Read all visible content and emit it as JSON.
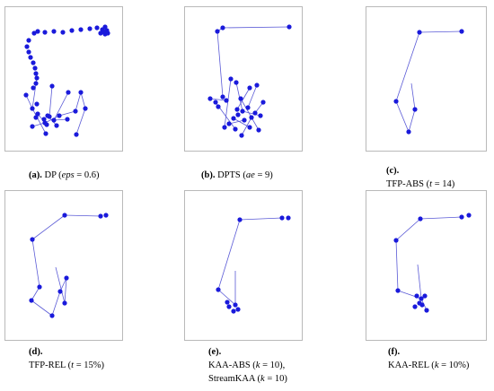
{
  "style": {
    "point_color": "#1a1adb",
    "line_color": "#5a5ad6",
    "border_color": "#b9b9b9"
  },
  "panels": [
    {
      "id": "a",
      "label": "(a).",
      "caption_lines": [
        {
          "pre": "DP (",
          "param": "eps",
          "post": " = 0.6)"
        }
      ],
      "points": [
        [
          38,
          37
        ],
        [
          42,
          35
        ],
        [
          50,
          36
        ],
        [
          60,
          35
        ],
        [
          70,
          36
        ],
        [
          80,
          34
        ],
        [
          90,
          33
        ],
        [
          100,
          32
        ],
        [
          108,
          31
        ],
        [
          114,
          33
        ],
        [
          117,
          30
        ],
        [
          119,
          34
        ],
        [
          116,
          36
        ],
        [
          120,
          37
        ],
        [
          117,
          38
        ],
        [
          112,
          37
        ],
        [
          32,
          45
        ],
        [
          30,
          52
        ],
        [
          32,
          58
        ],
        [
          34,
          64
        ],
        [
          37,
          70
        ],
        [
          39,
          76
        ],
        [
          40,
          82
        ],
        [
          41,
          87
        ],
        [
          40,
          93
        ],
        [
          37,
          98
        ],
        [
          29,
          106
        ],
        [
          41,
          116
        ],
        [
          36,
          121
        ],
        [
          42,
          127
        ],
        [
          40,
          131
        ],
        [
          49,
          133
        ],
        [
          36,
          141
        ],
        [
          51,
          149
        ],
        [
          50,
          137
        ],
        [
          53,
          129
        ],
        [
          52,
          139
        ],
        [
          60,
          134
        ],
        [
          66,
          129
        ],
        [
          63,
          140
        ],
        [
          75,
          133
        ],
        [
          84,
          124
        ],
        [
          76,
          103
        ],
        [
          90,
          103
        ],
        [
          95,
          121
        ],
        [
          85,
          150
        ],
        [
          58,
          96
        ],
        [
          55,
          130
        ]
      ],
      "segments": [
        [
          29,
          106,
          36,
          121
        ],
        [
          36,
          121,
          51,
          149
        ],
        [
          36,
          141,
          50,
          137
        ],
        [
          50,
          137,
          66,
          129
        ],
        [
          66,
          129,
          84,
          124
        ],
        [
          84,
          124,
          90,
          103
        ],
        [
          90,
          103,
          95,
          121
        ],
        [
          95,
          121,
          85,
          150
        ],
        [
          41,
          87,
          36,
          121
        ],
        [
          58,
          96,
          55,
          130
        ],
        [
          53,
          129,
          63,
          140
        ],
        [
          60,
          134,
          75,
          133
        ],
        [
          76,
          103,
          60,
          134
        ],
        [
          42,
          127,
          52,
          139
        ]
      ]
    },
    {
      "id": "b",
      "label": "(b).",
      "caption_lines": [
        {
          "pre": "DPTS (",
          "param": "ae",
          "post": " = 9)"
        }
      ],
      "points": [
        [
          242,
          35
        ],
        [
          248,
          31
        ],
        [
          322,
          30
        ],
        [
          234,
          110
        ],
        [
          240,
          114
        ],
        [
          243,
          119
        ],
        [
          248,
          108
        ],
        [
          252,
          112
        ],
        [
          257,
          88
        ],
        [
          263,
          92
        ],
        [
          270,
          124
        ],
        [
          265,
          128
        ],
        [
          260,
          132
        ],
        [
          255,
          138
        ],
        [
          250,
          142
        ],
        [
          262,
          144
        ],
        [
          269,
          151
        ],
        [
          272,
          134
        ],
        [
          276,
          120
        ],
        [
          280,
          131
        ],
        [
          284,
          126
        ],
        [
          290,
          129
        ],
        [
          293,
          114
        ],
        [
          288,
          145
        ],
        [
          278,
          142
        ],
        [
          268,
          110
        ],
        [
          278,
          98
        ],
        [
          286,
          95
        ],
        [
          264,
          122
        ]
      ],
      "segments": [
        [
          242,
          35,
          248,
          108
        ],
        [
          242,
          35,
          248,
          31
        ],
        [
          248,
          31,
          322,
          30
        ],
        [
          234,
          110,
          252,
          112
        ],
        [
          257,
          88,
          250,
          142
        ],
        [
          263,
          92,
          270,
          124
        ],
        [
          270,
          124,
          290,
          129
        ],
        [
          272,
          134,
          255,
          138
        ],
        [
          276,
          120,
          286,
          95
        ],
        [
          280,
          131,
          269,
          151
        ],
        [
          284,
          126,
          293,
          114
        ],
        [
          260,
          132,
          278,
          142
        ],
        [
          268,
          110,
          288,
          145
        ],
        [
          278,
          98,
          264,
          122
        ],
        [
          240,
          114,
          262,
          144
        ]
      ]
    },
    {
      "id": "c",
      "label": "(c).",
      "caption_lines": [
        {
          "pre": "TFP-ABS (",
          "param": "t",
          "post": " = 14)"
        }
      ],
      "points": [
        [
          467,
          36
        ],
        [
          514,
          35
        ],
        [
          441,
          113
        ],
        [
          462,
          122
        ],
        [
          455,
          147
        ]
      ],
      "segments": [
        [
          467,
          36,
          514,
          35
        ],
        [
          467,
          36,
          441,
          113
        ],
        [
          441,
          113,
          455,
          147
        ],
        [
          455,
          147,
          462,
          122
        ],
        [
          462,
          122,
          458,
          93
        ]
      ]
    },
    {
      "id": "d",
      "label": "(d).",
      "caption_lines": [
        {
          "pre": "TFP-REL (",
          "param": "t",
          "post": " = 15%)"
        }
      ],
      "points": [
        [
          72,
          240
        ],
        [
          112,
          241
        ],
        [
          118,
          240
        ],
        [
          36,
          267
        ],
        [
          44,
          320
        ],
        [
          35,
          335
        ],
        [
          58,
          352
        ],
        [
          67,
          325
        ],
        [
          74,
          310
        ],
        [
          72,
          338
        ]
      ],
      "segments": [
        [
          72,
          240,
          112,
          241
        ],
        [
          72,
          240,
          36,
          267
        ],
        [
          36,
          267,
          44,
          320
        ],
        [
          44,
          320,
          35,
          335
        ],
        [
          35,
          335,
          58,
          352
        ],
        [
          58,
          352,
          67,
          325
        ],
        [
          67,
          325,
          74,
          310
        ],
        [
          74,
          310,
          72,
          338
        ],
        [
          72,
          338,
          62,
          298
        ]
      ]
    },
    {
      "id": "e",
      "label": "(e).",
      "caption_lines": [
        {
          "pre": "KAA-ABS (",
          "param": "k",
          "post": " = 10),"
        },
        {
          "pre": "StreamKAA (",
          "param": "k",
          "post": " = 10)"
        }
      ],
      "points": [
        [
          267,
          245
        ],
        [
          314,
          243
        ],
        [
          321,
          243
        ],
        [
          243,
          323
        ],
        [
          255,
          342
        ],
        [
          260,
          347
        ],
        [
          262,
          340
        ],
        [
          265,
          345
        ],
        [
          253,
          337
        ]
      ],
      "segments": [
        [
          267,
          245,
          314,
          243
        ],
        [
          267,
          245,
          243,
          323
        ],
        [
          243,
          323,
          262,
          340
        ],
        [
          262,
          340,
          262,
          302
        ]
      ]
    },
    {
      "id": "f",
      "label": "(f).",
      "caption_lines": [
        {
          "pre": "KAA-REL (",
          "param": "k",
          "post": " = 10%)"
        }
      ],
      "points": [
        [
          468,
          244
        ],
        [
          514,
          242
        ],
        [
          522,
          240
        ],
        [
          441,
          268
        ],
        [
          443,
          324
        ],
        [
          464,
          330
        ],
        [
          469,
          333
        ],
        [
          473,
          330
        ],
        [
          470,
          340
        ],
        [
          475,
          346
        ],
        [
          462,
          342
        ],
        [
          467,
          338
        ]
      ],
      "segments": [
        [
          468,
          244,
          514,
          242
        ],
        [
          468,
          244,
          441,
          268
        ],
        [
          441,
          268,
          443,
          324
        ],
        [
          443,
          324,
          469,
          333
        ],
        [
          469,
          333,
          475,
          346
        ],
        [
          469,
          333,
          465,
          295
        ]
      ]
    }
  ]
}
